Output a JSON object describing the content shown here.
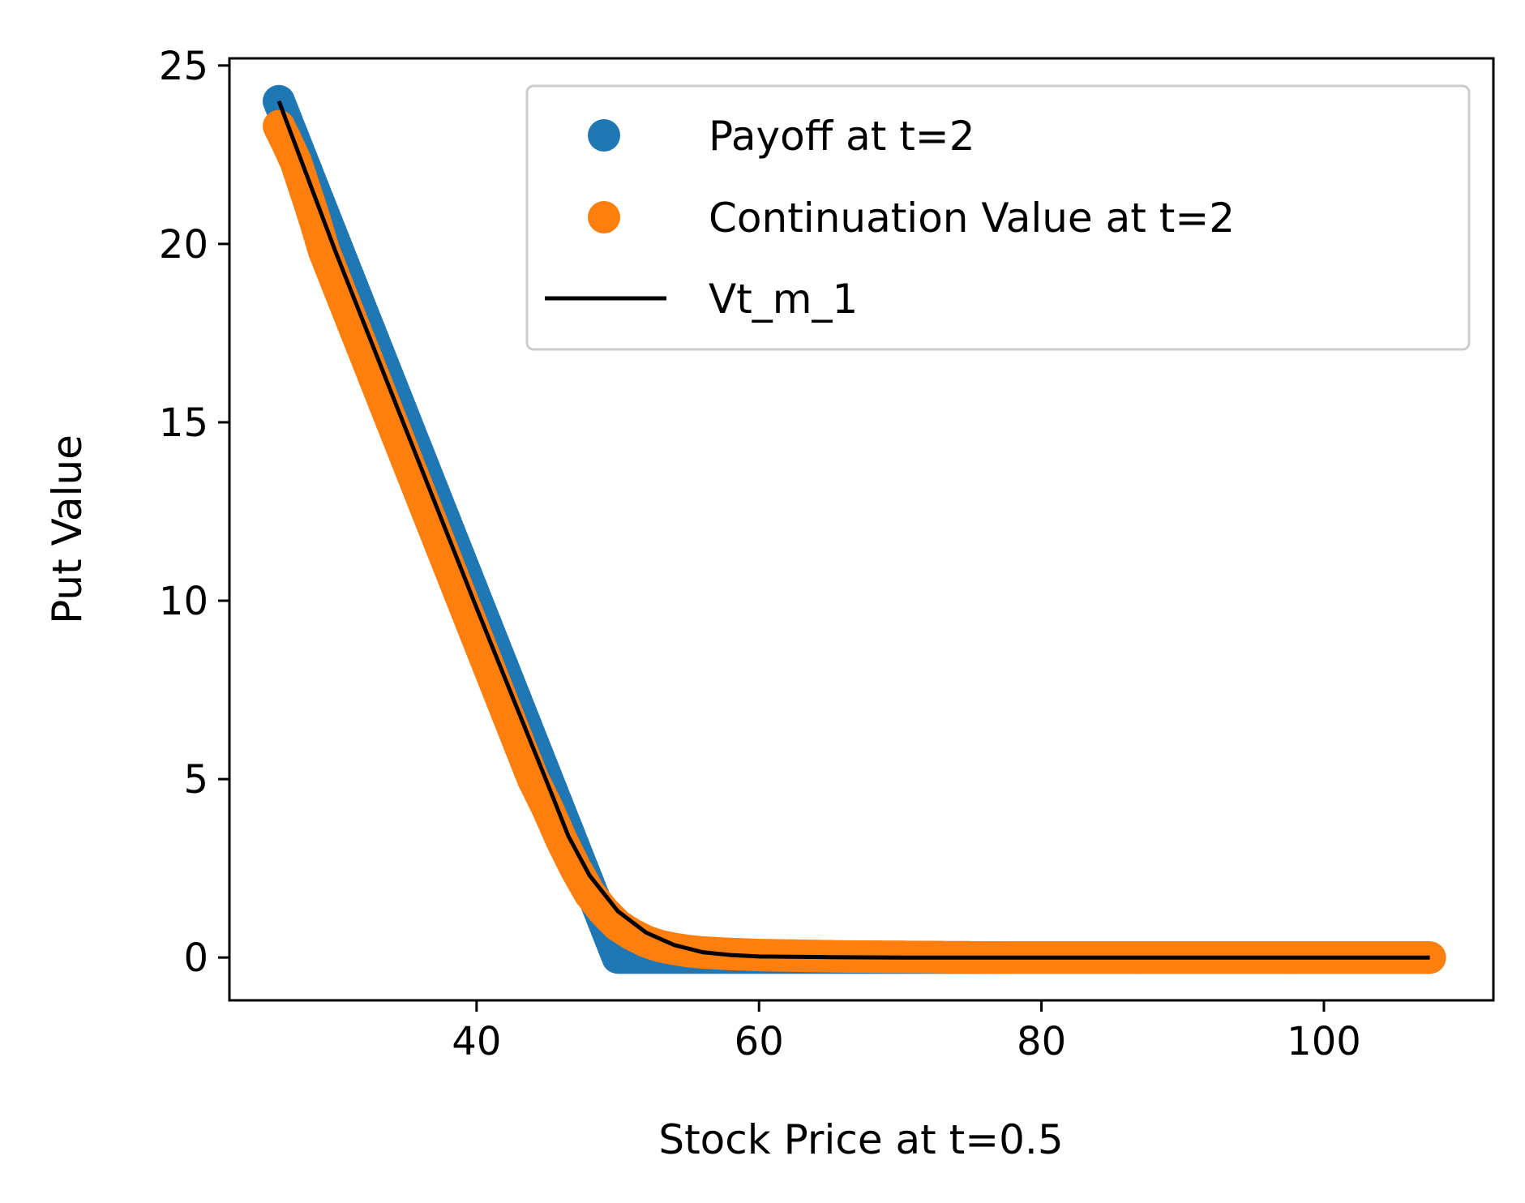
{
  "chart_data": {
    "type": "scatter",
    "xlabel": "Stock Price at t=0.5",
    "ylabel": "Put Value",
    "xlim": [
      22.5,
      112
    ],
    "ylim": [
      -1.2,
      25.2
    ],
    "xticks": [
      40,
      60,
      80,
      100
    ],
    "yticks": [
      0,
      5,
      10,
      15,
      20,
      25
    ],
    "grid": false,
    "legend_position": "top-right",
    "strike": 50,
    "series": [
      {
        "name": "Payoff at t=2",
        "kind": "scatter",
        "color": "#1f77b4",
        "x": [
          26.0,
          26.6,
          27.4,
          28.3,
          29.0,
          29.8,
          30.5,
          31.5,
          32.5,
          33.5,
          34.5,
          35.5,
          36.5,
          37.5,
          38.5,
          39.5,
          40.5,
          41.5,
          42.5,
          43.5,
          44.5,
          45.5,
          46.5,
          47.5,
          48.5,
          49.2,
          49.6,
          50.0,
          50.5,
          52,
          55,
          58,
          62,
          66,
          70,
          74,
          78,
          82,
          86,
          90,
          93,
          96,
          98,
          107,
          107.5
        ],
        "y": [
          24.0,
          23.4,
          22.6,
          21.7,
          21.0,
          20.2,
          19.5,
          18.5,
          17.5,
          16.5,
          15.5,
          14.5,
          13.5,
          12.5,
          11.5,
          10.5,
          9.5,
          8.5,
          7.5,
          6.5,
          5.5,
          4.5,
          3.5,
          2.5,
          1.5,
          0.8,
          0.4,
          0.0,
          0,
          0,
          0,
          0,
          0,
          0,
          0,
          0,
          0,
          0,
          0,
          0,
          0,
          0,
          0,
          0,
          0
        ]
      },
      {
        "name": "Continuation Value at t=2",
        "kind": "scatter",
        "color": "#ff7f0e",
        "x": [
          26.0,
          26.5,
          27.2,
          28.2,
          28.6,
          29.2,
          30.0,
          31.0,
          32.0,
          33.0,
          34.0,
          35.0,
          36.0,
          37.0,
          38.0,
          39.0,
          40.0,
          41.0,
          42.0,
          43.0,
          44.0,
          45.0,
          46.0,
          47.0,
          48.0,
          49.0,
          50.0,
          51.0,
          52.0,
          53.0,
          54.0,
          55.0,
          56.0,
          58.0,
          60.0,
          63.0,
          66,
          70,
          74,
          78,
          82,
          86,
          89,
          91,
          93,
          95,
          97,
          98,
          107,
          107.5
        ],
        "y": [
          23.3,
          22.9,
          22.3,
          21.1,
          20.6,
          19.8,
          19.0,
          18.0,
          17.0,
          16.0,
          15.0,
          14.0,
          13.0,
          12.0,
          11.0,
          10.0,
          9.0,
          8.0,
          7.0,
          6.0,
          5.0,
          4.2,
          3.3,
          2.5,
          1.8,
          1.3,
          0.9,
          0.65,
          0.45,
          0.32,
          0.24,
          0.18,
          0.14,
          0.1,
          0.07,
          0.05,
          0.03,
          0.02,
          0.01,
          0.0,
          0.0,
          0.0,
          0.0,
          0.0,
          0.0,
          0.0,
          0.0,
          0.0,
          0.0,
          0.0
        ]
      },
      {
        "name": "Vt_m_1",
        "kind": "line",
        "color": "#000000",
        "x": [
          26.0,
          30.0,
          35.0,
          40.0,
          45.0,
          46.5,
          48.0,
          50.0,
          52.0,
          54.0,
          56.0,
          58.0,
          60.0,
          65.0,
          70.0,
          80.0,
          90.0,
          100.0,
          107.5
        ],
        "y": [
          24.0,
          19.8,
          14.8,
          9.8,
          4.9,
          3.4,
          2.3,
          1.3,
          0.7,
          0.35,
          0.15,
          0.07,
          0.03,
          0.01,
          0.0,
          0.0,
          0.0,
          0.0,
          0.0
        ]
      }
    ]
  }
}
